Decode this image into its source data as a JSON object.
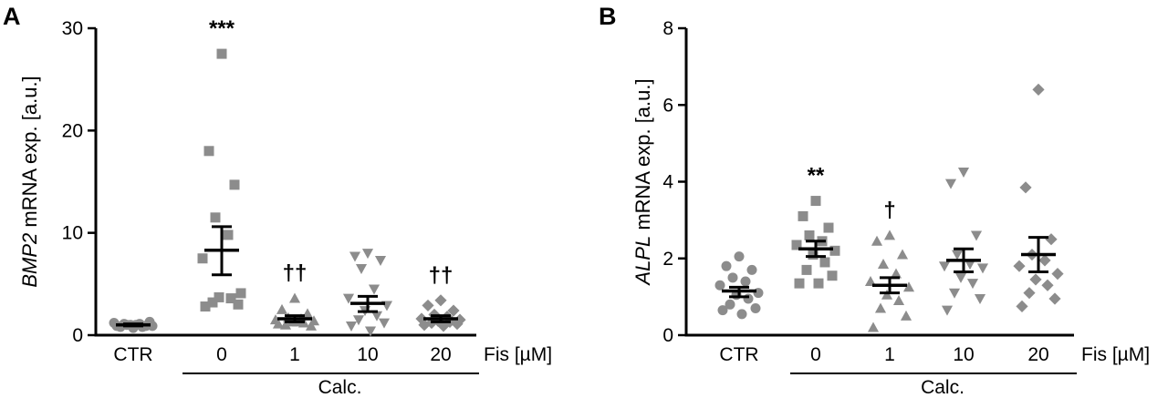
{
  "chart_data": [
    {
      "panel_label": "A",
      "type": "scatter",
      "ylabel_italic": "BMP2",
      "ylabel_rest": " mRNA exp. [a.u.]",
      "ylim": [
        0,
        30
      ],
      "yticks": [
        0,
        10,
        20,
        30
      ],
      "categories": [
        "CTR",
        "0",
        "1",
        "10",
        "20"
      ],
      "x_axis_unit": "Fis [µM]",
      "group_label": "Calc.",
      "groups": [
        {
          "category": "CTR",
          "marker": "circle",
          "mean": 1.0,
          "sem_low": 0.9,
          "sem_high": 1.1,
          "values": [
            0.7,
            0.8,
            0.9,
            1.0,
            1.1,
            1.2,
            0.9,
            1.0,
            0.8,
            1.1,
            1.3,
            0.9,
            1.0
          ],
          "annotation": ""
        },
        {
          "category": "0",
          "marker": "square",
          "mean": 8.3,
          "sem_low": 5.9,
          "sem_high": 10.6,
          "values": [
            27.5,
            18.0,
            14.7,
            11.5,
            9.8,
            7.5,
            4.1,
            3.7,
            3.6,
            3.2,
            3.0,
            2.8
          ],
          "annotation": "***"
        },
        {
          "category": "1",
          "marker": "triangle-up",
          "mean": 1.6,
          "sem_low": 1.3,
          "sem_high": 1.9,
          "values": [
            3.6,
            2.5,
            2.1,
            1.7,
            1.6,
            1.5,
            1.4,
            1.3,
            1.2,
            1.0,
            0.9,
            1.1,
            1.3
          ],
          "annotation": "††"
        },
        {
          "category": "10",
          "marker": "triangle-down",
          "mean": 3.1,
          "sem_low": 2.3,
          "sem_high": 3.8,
          "values": [
            8.0,
            7.7,
            7.3,
            6.5,
            4.5,
            3.6,
            2.9,
            2.4,
            1.9,
            1.5,
            1.2,
            0.9,
            0.4
          ],
          "annotation": ""
        },
        {
          "category": "20",
          "marker": "diamond",
          "mean": 1.6,
          "sem_low": 1.3,
          "sem_high": 1.9,
          "values": [
            3.4,
            2.9,
            2.4,
            2.0,
            1.8,
            1.6,
            1.5,
            1.4,
            1.3,
            1.2,
            1.1,
            1.0,
            0.9
          ],
          "annotation": "††"
        }
      ]
    },
    {
      "panel_label": "B",
      "type": "scatter",
      "ylabel_italic": "ALPL",
      "ylabel_rest": " mRNA exp. [a.u.]",
      "ylim": [
        0,
        8
      ],
      "yticks": [
        0,
        2,
        4,
        6,
        8
      ],
      "categories": [
        "CTR",
        "0",
        "1",
        "10",
        "20"
      ],
      "x_axis_unit": "Fis [µM]",
      "group_label": "Calc.",
      "groups": [
        {
          "category": "CTR",
          "marker": "circle",
          "mean": 1.15,
          "sem_low": 1.0,
          "sem_high": 1.25,
          "values": [
            2.05,
            1.8,
            1.7,
            1.5,
            1.4,
            1.3,
            1.1,
            1.05,
            0.95,
            0.8,
            0.7,
            0.65,
            0.55
          ],
          "annotation": ""
        },
        {
          "category": "0",
          "marker": "square",
          "mean": 2.25,
          "sem_low": 2.05,
          "sem_high": 2.45,
          "values": [
            3.5,
            3.1,
            2.8,
            2.6,
            2.45,
            2.35,
            2.2,
            2.1,
            1.9,
            1.7,
            1.55,
            1.35,
            1.35
          ],
          "annotation": "**"
        },
        {
          "category": "1",
          "marker": "triangle-up",
          "mean": 1.3,
          "sem_low": 1.1,
          "sem_high": 1.5,
          "values": [
            2.6,
            2.45,
            2.1,
            1.85,
            1.6,
            1.4,
            1.25,
            1.05,
            0.9,
            0.7,
            0.5,
            0.2
          ],
          "annotation": "†"
        },
        {
          "category": "10",
          "marker": "triangle-down",
          "mean": 1.95,
          "sem_low": 1.65,
          "sem_high": 2.25,
          "values": [
            4.25,
            3.95,
            2.6,
            2.1,
            1.85,
            1.8,
            1.75,
            1.5,
            1.35,
            1.1,
            0.95,
            0.65
          ],
          "annotation": ""
        },
        {
          "category": "20",
          "marker": "diamond",
          "mean": 2.1,
          "sem_low": 1.65,
          "sem_high": 2.55,
          "values": [
            6.4,
            3.85,
            2.5,
            2.1,
            1.95,
            1.8,
            1.6,
            1.45,
            1.3,
            1.1,
            0.95,
            0.75
          ],
          "annotation": ""
        }
      ]
    }
  ]
}
